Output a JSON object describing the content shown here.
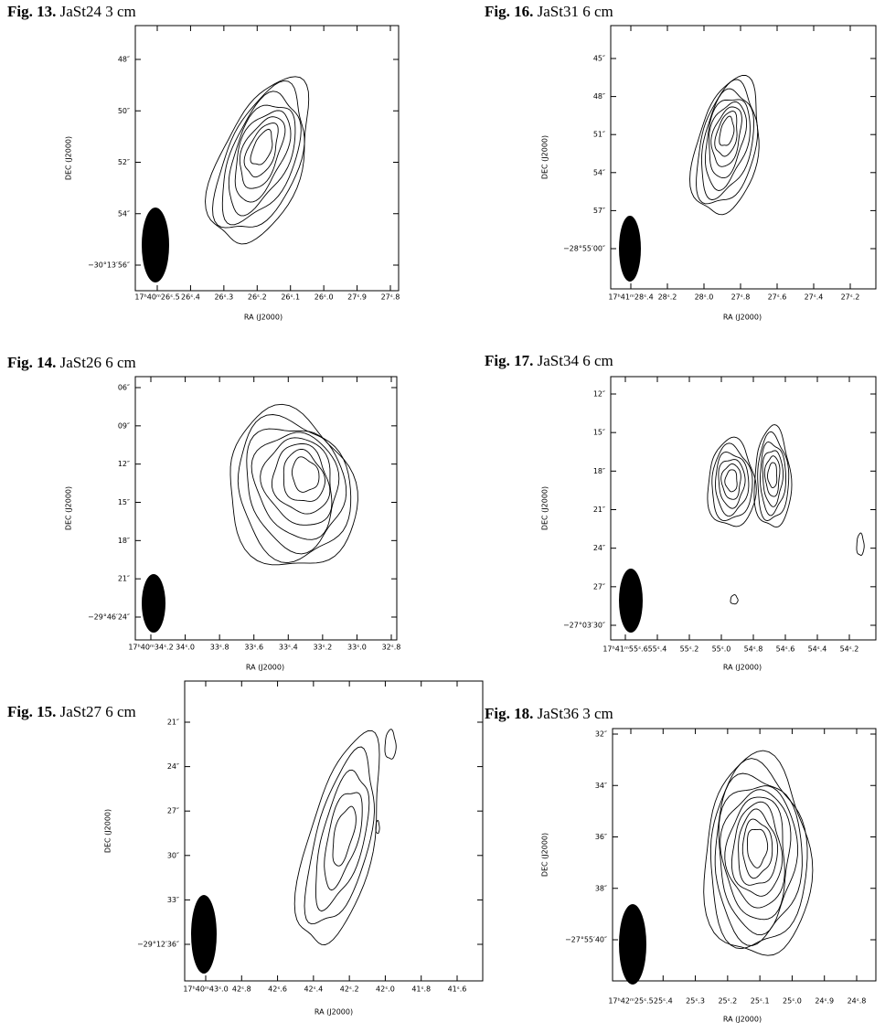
{
  "figures": [
    {
      "label": "Fig. 13.",
      "caption": "JaSt24 3 cm",
      "x_label": "RA (J2000)",
      "y_label": "DEC (J2000)",
      "xticks": [
        "17ʰ40ᵐ26ˢ.5",
        "26ˢ.4",
        "26ˢ.3",
        "26ˢ.2",
        "26ˢ.1",
        "26ˢ.0",
        "27ˢ.9",
        "27ˢ.8"
      ],
      "yticks": [
        "48″",
        "50″",
        "52″",
        "54″",
        "−30°13′56″"
      ]
    },
    {
      "label": "Fig. 16.",
      "caption": "JaSt31 6 cm",
      "x_label": "RA (J2000)",
      "y_label": "DEC (J2000)",
      "xticks": [
        "17ʰ41ᵐ28ˢ.4",
        "28ˢ.2",
        "28ˢ.0",
        "27ˢ.8",
        "27ˢ.6",
        "27ˢ.4",
        "27ˢ.2"
      ],
      "yticks": [
        "45″",
        "48″",
        "51″",
        "54″",
        "57″",
        "−28°55′00″"
      ]
    },
    {
      "label": "Fig. 14.",
      "caption": "JaSt26 6 cm",
      "x_label": "RA (J2000)",
      "y_label": "DEC (J2000)",
      "xticks": [
        "17ʰ40ᵐ34ˢ.2",
        "34ˢ.0",
        "33ˢ.8",
        "33ˢ.6",
        "33ˢ.4",
        "33ˢ.2",
        "33ˢ.0",
        "32ˢ.8"
      ],
      "yticks": [
        "06″",
        "09″",
        "12″",
        "15″",
        "18″",
        "21″",
        "−29°46′24″"
      ]
    },
    {
      "label": "Fig. 17.",
      "caption": "JaSt34 6 cm",
      "x_label": "RA (J2000)",
      "y_label": "DEC (J2000)",
      "xticks": [
        "17ʰ41ᵐ55ˢ.6",
        "55ˢ.4",
        "55ˢ.2",
        "55ˢ.0",
        "54ˢ.8",
        "54ˢ.6",
        "54ˢ.4",
        "54ˢ.2"
      ],
      "yticks": [
        "12″",
        "15″",
        "18″",
        "21″",
        "24″",
        "27″",
        "−27°03′30″"
      ]
    },
    {
      "label": "Fig. 15.",
      "caption": "JaSt27 6 cm",
      "x_label": "RA (J2000)",
      "y_label": "DEC (J2000)",
      "xticks": [
        "17ʰ40ᵐ43ˢ.0",
        "42ˢ.8",
        "42ˢ.6",
        "42ˢ.4",
        "42ˢ.2",
        "42ˢ.0",
        "41ˢ.8",
        "41ˢ.6"
      ],
      "yticks": [
        "21″",
        "24″",
        "27″",
        "30″",
        "33″",
        "−29°12′36″"
      ]
    },
    {
      "label": "Fig. 18.",
      "caption": "JaSt36 3 cm",
      "x_label": "RA (J2000)",
      "y_label": "DEC (J2000)",
      "xticks": [
        "17ʰ42ᵐ25ˢ.5",
        "25ˢ.4",
        "25ˢ.3",
        "25ˢ.2",
        "25ˢ.1",
        "25ˢ.0",
        "24ˢ.9",
        "24ˢ.8"
      ],
      "yticks": [
        "32″",
        "34″",
        "36″",
        "38″",
        "−27°55′40″"
      ]
    }
  ]
}
